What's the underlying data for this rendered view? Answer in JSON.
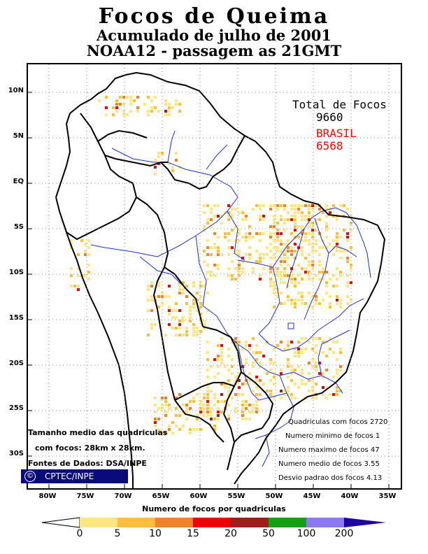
{
  "title": {
    "line1": "Focos de Queima",
    "line2": "Acumulado de julho de 2001",
    "line3": "NOAA12 - passagem as 21GMT"
  },
  "map": {
    "lat_labels": [
      "10N",
      "5N",
      "EQ",
      "5S",
      "10S",
      "15S",
      "20S",
      "25S",
      "30S"
    ],
    "lon_labels": [
      "80W",
      "75W",
      "70W",
      "65W",
      "60W",
      "55W",
      "50W",
      "45W",
      "40W",
      "35W"
    ],
    "lat_range": [
      13,
      -34
    ],
    "lon_range": [
      -83.5,
      -35.5
    ]
  },
  "totals": {
    "label": "Total de Focos",
    "total": "9660",
    "country": "BRASIL",
    "country_total": "6568",
    "country_color": "#ff0000"
  },
  "stats": {
    "line1": "Quadriculas com focos 2720",
    "line2": "Numero minimo de focos 1",
    "line3": "Numero maximo de focos 47",
    "line4": "Numero medio de focos 3.55",
    "line5": "Desvio padrao dos focos 4.13"
  },
  "notes": {
    "size_line1": "Tamanho medio das quadriculas",
    "size_line2": "com focos: 28km x 28km.",
    "source": "Fontes de Dados: DSA/INPE",
    "logo_text": "CPTEC/INPE",
    "logo_symbol": "©"
  },
  "legend": {
    "title": "Numero de focos por quadriculas",
    "ticks": [
      "0",
      "5",
      "10",
      "15",
      "20",
      "50",
      "100",
      "200"
    ],
    "colors": [
      "#ffe680",
      "#ffbe3c",
      "#f08228",
      "#f00000",
      "#a01e1e",
      "#14a014",
      "#8c78f0",
      "#1e00a0"
    ]
  }
}
